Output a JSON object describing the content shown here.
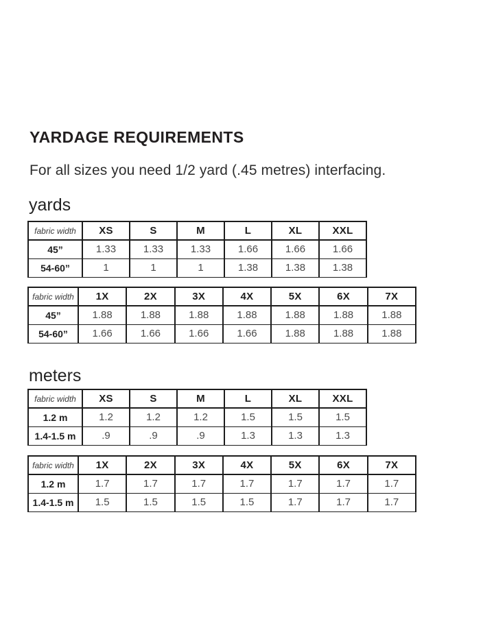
{
  "page_title": "YARDAGE REQUIREMENTS",
  "intro": "For all sizes you need 1/2 yard (.45 metres) interfacing.",
  "colors": {
    "background": "#ffffff",
    "text": "#211e1f",
    "table_border": "#1c1c1c",
    "value_text": "#4a4a4a"
  },
  "sections": [
    {
      "label": "yards",
      "tables": [
        {
          "name": "yards-standard-sizes",
          "corner_label": "fabric width",
          "size_headers": [
            "XS",
            "S",
            "M",
            "L",
            "XL",
            "XXL"
          ],
          "rows": [
            {
              "label": "45”",
              "values": [
                "1.33",
                "1.33",
                "1.33",
                "1.66",
                "1.66",
                "1.66"
              ]
            },
            {
              "label": "54-60”",
              "values": [
                "1",
                "1",
                "1",
                "1.38",
                "1.38",
                "1.38"
              ]
            }
          ]
        },
        {
          "name": "yards-plus-sizes",
          "corner_label": "fabric width",
          "size_headers": [
            "1X",
            "2X",
            "3X",
            "4X",
            "5X",
            "6X",
            "7X"
          ],
          "rows": [
            {
              "label": "45”",
              "values": [
                "1.88",
                "1.88",
                "1.88",
                "1.88",
                "1.88",
                "1.88",
                "1.88"
              ]
            },
            {
              "label": "54-60”",
              "values": [
                "1.66",
                "1.66",
                "1.66",
                "1.66",
                "1.88",
                "1.88",
                "1.88"
              ]
            }
          ]
        }
      ]
    },
    {
      "label": "meters",
      "tables": [
        {
          "name": "meters-standard-sizes",
          "corner_label": "fabric width",
          "size_headers": [
            "XS",
            "S",
            "M",
            "L",
            "XL",
            "XXL"
          ],
          "rows": [
            {
              "label": "1.2 m",
              "values": [
                "1.2",
                "1.2",
                "1.2",
                "1.5",
                "1.5",
                "1.5"
              ]
            },
            {
              "label": "1.4-1.5 m",
              "values": [
                ".9",
                ".9",
                ".9",
                "1.3",
                "1.3",
                "1.3"
              ]
            }
          ]
        },
        {
          "name": "meters-plus-sizes",
          "corner_label": "fabric width",
          "size_headers": [
            "1X",
            "2X",
            "3X",
            "4X",
            "5X",
            "6X",
            "7X"
          ],
          "rows": [
            {
              "label": "1.2 m",
              "values": [
                "1.7",
                "1.7",
                "1.7",
                "1.7",
                "1.7",
                "1.7",
                "1.7"
              ]
            },
            {
              "label": "1.4-1.5 m",
              "values": [
                "1.5",
                "1.5",
                "1.5",
                "1.5",
                "1.7",
                "1.7",
                "1.7"
              ]
            }
          ]
        }
      ]
    }
  ]
}
